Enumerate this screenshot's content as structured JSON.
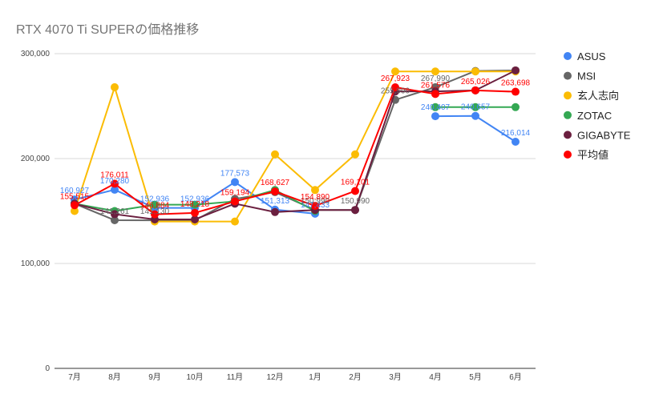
{
  "chart_data": {
    "type": "line",
    "title": "RTX 4070 Ti SUPERの価格推移",
    "xlabel": "",
    "ylabel": "",
    "categories": [
      "7月",
      "8月",
      "9月",
      "10月",
      "11月",
      "12月",
      "1月",
      "2月",
      "3月",
      "4月",
      "5月",
      "6月"
    ],
    "ylim": [
      0,
      300000
    ],
    "yticks": [
      0,
      100000,
      200000,
      300000
    ],
    "ytick_labels": [
      "0",
      "100,000",
      "200,000",
      "300,000"
    ],
    "grid": true,
    "legend_position": "right",
    "series": [
      {
        "name": "ASUS",
        "color": "#4285f4",
        "values": [
          160927,
          170280,
          152936,
          152936,
          177573,
          151313,
          147433,
          null,
          null,
          240407,
          240657,
          216014
        ],
        "labels": [
          "160,927",
          "170,280",
          "152,936",
          "152,936",
          "177,573",
          "151,313",
          "147,433",
          "",
          "",
          "240,407",
          "240,657",
          "216,014"
        ]
      },
      {
        "name": "MSI",
        "color": "#666666",
        "values": [
          157000,
          141261,
          141130,
          141130,
          161500,
          168000,
          150990,
          150990,
          255990,
          267990,
          283500,
          284000
        ],
        "labels": [
          "",
          "141,261",
          "141,130",
          "",
          "",
          "",
          "150,990",
          "150,990",
          "255,990",
          "267,990",
          "",
          ""
        ]
      },
      {
        "name": "玄人志向",
        "color": "#fbbc04",
        "values": [
          150000,
          268000,
          140000,
          140000,
          140000,
          204000,
          170000,
          204000,
          283000,
          283000,
          283000,
          283000
        ],
        "labels": []
      },
      {
        "name": "ZOTAC",
        "color": "#34a853",
        "values": [
          157000,
          150000,
          156000,
          156000,
          159194,
          170000,
          150000,
          null,
          null,
          249000,
          249000,
          249000
        ],
        "labels": [
          "",
          "",
          "",
          "",
          "",
          "",
          "",
          "",
          "",
          "",
          "",
          ""
        ]
      },
      {
        "name": "GIGABYTE",
        "color": "#6b1f3f",
        "values": [
          157000,
          147000,
          142000,
          142000,
          157000,
          149000,
          151000,
          151000,
          264000,
          264000,
          265026,
          284000
        ],
        "labels": []
      },
      {
        "name": "平均値",
        "color": "#ff0000",
        "values": [
          155515,
          176011,
          146884,
          148218,
          159194,
          168627,
          154890,
          169101,
          267923,
          261576,
          265026,
          263698
        ],
        "labels": [
          "155,515",
          "176,011",
          "146,884",
          "148,218",
          "159,194",
          "168,627",
          "154,890",
          "169,101",
          "267,923",
          "261,576",
          "265,026",
          "263,698"
        ]
      }
    ]
  }
}
